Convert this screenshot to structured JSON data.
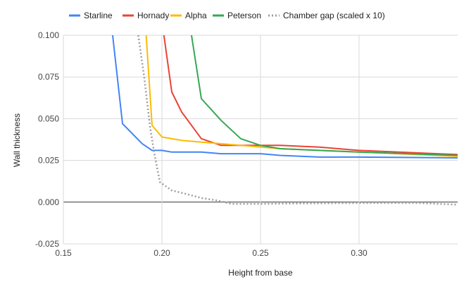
{
  "chart_data": {
    "type": "line",
    "title": "",
    "xlabel": "Height from base",
    "ylabel": "Wall thickness",
    "xlim": [
      0.15,
      0.35
    ],
    "ylim": [
      -0.025,
      0.1
    ],
    "x_ticks": [
      0.15,
      0.2,
      0.25,
      0.3
    ],
    "x_tick_labels": [
      "0.15",
      "0.20",
      "0.25",
      "0.30"
    ],
    "y_ticks": [
      -0.025,
      0.0,
      0.025,
      0.05,
      0.075,
      0.1
    ],
    "y_tick_labels": [
      "-0.025",
      "0.000",
      "0.025",
      "0.050",
      "0.075",
      "0.100"
    ],
    "grid": true,
    "legend_position": "top",
    "series": [
      {
        "name": "Starline",
        "color": "#4285f4",
        "dash": false,
        "x": [
          0.175,
          0.18,
          0.19,
          0.195,
          0.2,
          0.205,
          0.22,
          0.23,
          0.25,
          0.26,
          0.28,
          0.3,
          0.35
        ],
        "y": [
          0.1,
          0.047,
          0.035,
          0.031,
          0.031,
          0.03,
          0.03,
          0.029,
          0.029,
          0.028,
          0.027,
          0.027,
          0.0265
        ]
      },
      {
        "name": "Hornady",
        "color": "#ea4335",
        "dash": false,
        "x": [
          0.201,
          0.205,
          0.21,
          0.22,
          0.23,
          0.26,
          0.28,
          0.3,
          0.35
        ],
        "y": [
          0.1,
          0.066,
          0.054,
          0.038,
          0.034,
          0.034,
          0.033,
          0.031,
          0.0285
        ]
      },
      {
        "name": "Alpha",
        "color": "#fbbc04",
        "dash": false,
        "x": [
          0.192,
          0.195,
          0.2,
          0.21,
          0.22,
          0.24,
          0.26,
          0.3,
          0.35
        ],
        "y": [
          0.1,
          0.046,
          0.039,
          0.037,
          0.036,
          0.034,
          0.032,
          0.03,
          0.0275
        ]
      },
      {
        "name": "Peterson",
        "color": "#34a853",
        "dash": false,
        "x": [
          0.215,
          0.22,
          0.23,
          0.24,
          0.25,
          0.26,
          0.3,
          0.35
        ],
        "y": [
          0.1,
          0.062,
          0.049,
          0.038,
          0.034,
          0.032,
          0.03,
          0.028
        ]
      },
      {
        "name": "Chamber gap (scaled x 10)",
        "color": "#9e9e9e",
        "dash": true,
        "x": [
          0.188,
          0.191,
          0.194,
          0.196,
          0.199,
          0.205,
          0.212,
          0.22,
          0.228,
          0.235,
          0.25,
          0.3,
          0.33,
          0.35
        ],
        "y": [
          0.1,
          0.075,
          0.045,
          0.03,
          0.012,
          0.007,
          0.005,
          0.0025,
          0.001,
          -0.001,
          -0.001,
          -0.0005,
          -0.0005,
          -0.0015
        ]
      }
    ]
  }
}
